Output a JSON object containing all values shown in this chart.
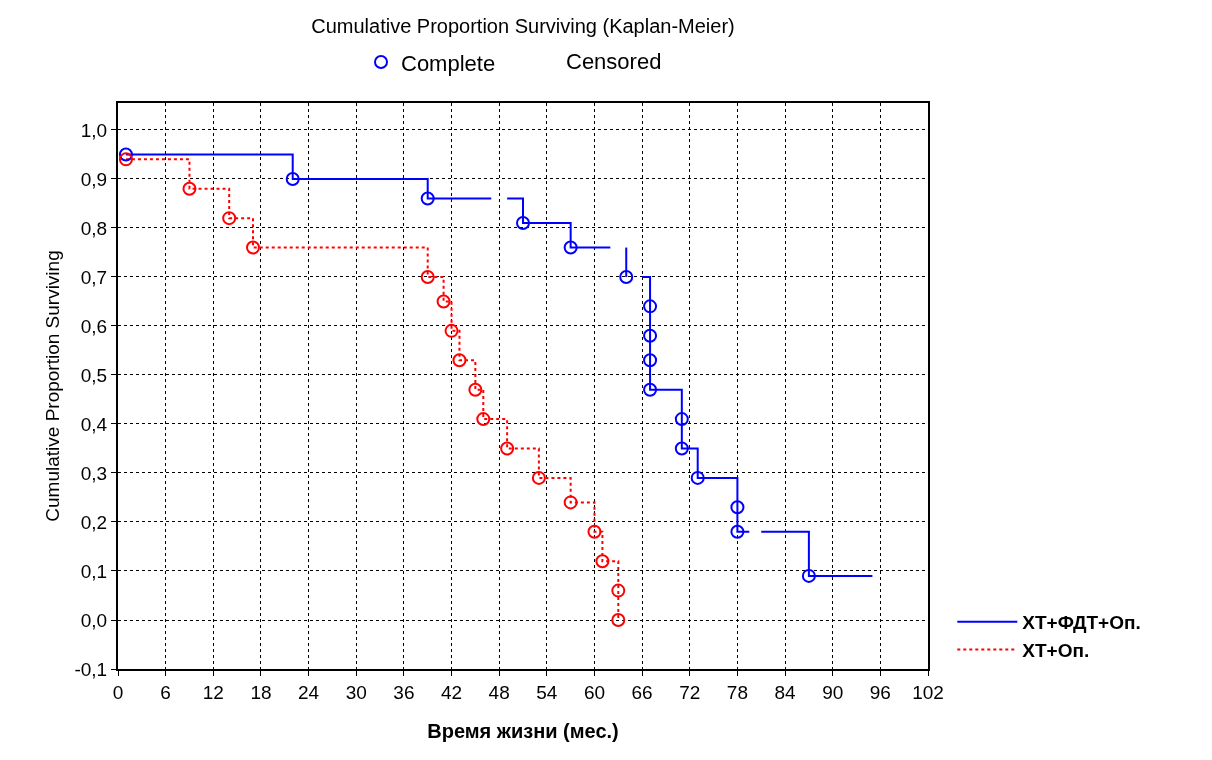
{
  "chart_data": {
    "type": "step",
    "title": "Cumulative Proportion Surviving (Kaplan-Meier)",
    "xlabel": "Время жизни (мес.)",
    "ylabel": "Cumulative Proportion Surviving",
    "xlim": [
      0,
      102
    ],
    "xticks": [
      0,
      6,
      12,
      18,
      24,
      30,
      36,
      42,
      48,
      54,
      60,
      66,
      72,
      78,
      84,
      90,
      96,
      102
    ],
    "ylim": [
      -0.1,
      1.055
    ],
    "yticks": [
      {
        "value": -0.1,
        "label": "-0,1"
      },
      {
        "value": 0,
        "label": "0,0"
      },
      {
        "value": 0.1,
        "label": "0,1"
      },
      {
        "value": 0.2,
        "label": "0,2"
      },
      {
        "value": 0.3,
        "label": "0,3"
      },
      {
        "value": 0.4,
        "label": "0,4"
      },
      {
        "value": 0.5,
        "label": "0,5"
      },
      {
        "value": 0.6,
        "label": "0,6"
      },
      {
        "value": 0.7,
        "label": "0,7"
      },
      {
        "value": 0.8,
        "label": "0,8"
      },
      {
        "value": 0.9,
        "label": "0,9"
      },
      {
        "value": 1.0,
        "label": "1,0"
      }
    ],
    "grid": true,
    "legend": "right",
    "annotations": [
      "Censored"
    ],
    "series": [
      {
        "name": "ХТ+ФДТ+Оп.",
        "color": "#0000ff",
        "line_style": "solid",
        "x": [
          1,
          22,
          39,
          47,
          48,
          49,
          51,
          57,
          62,
          63,
          64,
          64,
          65,
          66,
          67,
          67,
          67,
          67,
          71,
          71,
          73,
          78,
          78,
          79.5,
          80,
          81,
          87,
          95
        ],
        "values": [
          0.95,
          0.9,
          0.86,
          0.86,
          null,
          0.86,
          0.81,
          0.76,
          0.76,
          null,
          0.76,
          0.7,
          null,
          0.7,
          0.64,
          0.58,
          0.53,
          0.47,
          0.41,
          0.35,
          0.29,
          0.23,
          0.18,
          0.18,
          null,
          0.18,
          0.09,
          0.09
        ]
      },
      {
        "name": "ХТ+Оп.",
        "color": "#ff0000",
        "line_style": "dotted",
        "x": [
          1,
          9,
          14,
          17,
          39,
          41,
          42,
          43,
          45,
          46,
          49,
          53,
          57,
          60,
          61,
          63,
          63
        ],
        "values": [
          0.94,
          0.88,
          0.82,
          0.76,
          0.7,
          0.65,
          0.59,
          0.53,
          0.47,
          0.41,
          0.35,
          0.29,
          0.24,
          0.18,
          0.12,
          0.06,
          0.0
        ]
      },
      {
        "name": "Complete",
        "type": "scatter",
        "marker": "circle",
        "color": "#0000ff",
        "x": [
          1,
          22,
          39,
          51,
          57,
          64,
          67,
          67,
          67,
          67,
          71,
          71,
          73,
          78,
          78,
          87
        ],
        "values": [
          0.95,
          0.9,
          0.86,
          0.81,
          0.76,
          0.7,
          0.64,
          0.58,
          0.53,
          0.47,
          0.41,
          0.35,
          0.29,
          0.23,
          0.18,
          0.09
        ]
      },
      {
        "type": "scatter",
        "marker": "circle",
        "color": "#ff0000",
        "x": [
          1,
          9,
          14,
          17,
          39,
          41,
          42,
          43,
          45,
          46,
          49,
          53,
          57,
          60,
          61,
          63,
          63
        ],
        "values": [
          0.94,
          0.88,
          0.82,
          0.76,
          0.7,
          0.65,
          0.59,
          0.53,
          0.47,
          0.41,
          0.35,
          0.29,
          0.24,
          0.18,
          0.12,
          0.06,
          0.0
        ]
      }
    ]
  }
}
